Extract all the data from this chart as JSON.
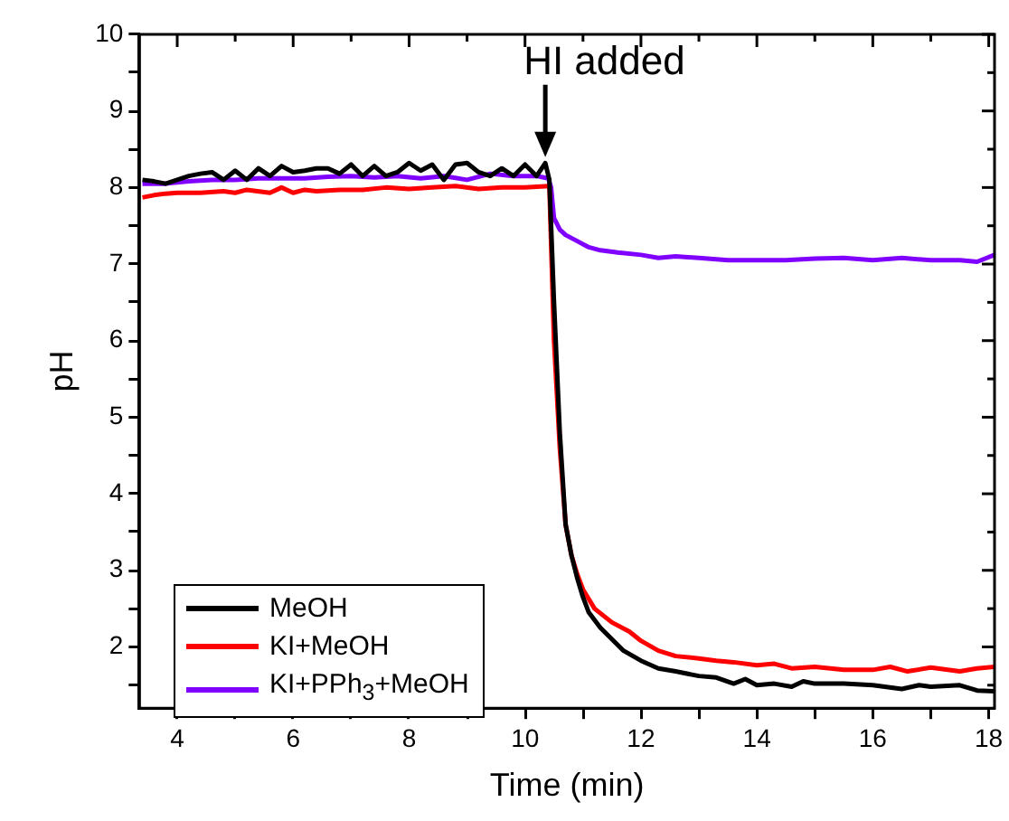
{
  "chart_data": {
    "type": "line",
    "xlabel": "Time (min)",
    "ylabel": "pH",
    "xlim": [
      3.35,
      18.1
    ],
    "ylim": [
      1.2,
      10
    ],
    "xticks": [
      4,
      {
        "value": 5,
        "label": null
      },
      6,
      {
        "value": 7,
        "label": null
      },
      8,
      {
        "value": 9,
        "label": null
      },
      10,
      {
        "value": 11,
        "label": null
      },
      12,
      {
        "value": 13,
        "label": null
      },
      14,
      {
        "value": 15,
        "label": null
      },
      16,
      {
        "value": 17,
        "label": null
      },
      18
    ],
    "yticks": [
      {
        "value": 1.5,
        "label": null
      },
      2,
      {
        "value": 2.5,
        "label": null
      },
      3,
      {
        "value": 3.5,
        "label": null
      },
      4,
      {
        "value": 4.5,
        "label": null
      },
      5,
      {
        "value": 5.5,
        "label": null
      },
      6,
      {
        "value": 6.5,
        "label": null
      },
      7,
      {
        "value": 7.5,
        "label": null
      },
      8,
      {
        "value": 8.5,
        "label": null
      },
      9,
      {
        "value": 9.5,
        "label": null
      },
      10
    ],
    "grid": false,
    "legend": "bottom left",
    "marker": "none",
    "line_style": "solid",
    "annotations": [
      {
        "text": "HI added",
        "x": 10.35,
        "y": 8.35
      }
    ],
    "series": [
      {
        "name": "MeOH",
        "color": "#000000",
        "x": [
          3.4,
          3.6,
          3.8,
          4.0,
          4.2,
          4.4,
          4.6,
          4.8,
          5.0,
          5.2,
          5.4,
          5.6,
          5.8,
          6.0,
          6.2,
          6.4,
          6.6,
          6.8,
          7.0,
          7.2,
          7.4,
          7.6,
          7.8,
          8.0,
          8.2,
          8.4,
          8.6,
          8.8,
          9.0,
          9.2,
          9.4,
          9.6,
          9.8,
          10.0,
          10.2,
          10.35,
          10.42,
          10.5,
          10.6,
          10.7,
          10.8,
          10.9,
          11.0,
          11.1,
          11.3,
          11.5,
          11.7,
          12.0,
          12.3,
          12.6,
          13.0,
          13.3,
          13.6,
          13.8,
          14.0,
          14.3,
          14.6,
          14.8,
          15.0,
          15.5,
          16.0,
          16.5,
          16.8,
          17.0,
          17.5,
          17.8,
          18.1
        ],
        "values": [
          8.1,
          8.08,
          8.05,
          8.1,
          8.15,
          8.18,
          8.2,
          8.1,
          8.22,
          8.1,
          8.25,
          8.15,
          8.28,
          8.2,
          8.22,
          8.25,
          8.25,
          8.18,
          8.3,
          8.15,
          8.28,
          8.15,
          8.2,
          8.32,
          8.22,
          8.3,
          8.1,
          8.3,
          8.32,
          8.2,
          8.15,
          8.25,
          8.15,
          8.3,
          8.15,
          8.32,
          8.1,
          6.5,
          4.8,
          3.6,
          3.2,
          2.9,
          2.65,
          2.45,
          2.25,
          2.1,
          1.95,
          1.82,
          1.72,
          1.68,
          1.62,
          1.6,
          1.52,
          1.58,
          1.5,
          1.52,
          1.48,
          1.55,
          1.52,
          1.52,
          1.5,
          1.45,
          1.5,
          1.48,
          1.5,
          1.43,
          1.42
        ]
      },
      {
        "name": "KI+MeOH",
        "color": "#ff0000",
        "x": [
          3.4,
          3.6,
          3.8,
          4.0,
          4.4,
          4.8,
          5.0,
          5.2,
          5.6,
          5.8,
          6.0,
          6.2,
          6.4,
          6.8,
          7.2,
          7.6,
          8.0,
          8.4,
          8.8,
          9.2,
          9.6,
          10.0,
          10.42,
          10.5,
          10.6,
          10.7,
          10.8,
          10.9,
          11.0,
          11.2,
          11.5,
          11.8,
          12.0,
          12.3,
          12.6,
          13.0,
          13.3,
          13.6,
          14.0,
          14.3,
          14.6,
          15.0,
          15.5,
          16.0,
          16.3,
          16.6,
          17.0,
          17.5,
          17.8,
          18.1
        ],
        "values": [
          7.87,
          7.9,
          7.92,
          7.93,
          7.93,
          7.95,
          7.93,
          7.97,
          7.93,
          8.0,
          7.93,
          7.97,
          7.95,
          7.97,
          7.97,
          8.0,
          7.98,
          8.0,
          8.02,
          7.98,
          8.0,
          8.0,
          8.02,
          6.0,
          4.6,
          3.6,
          3.2,
          2.95,
          2.75,
          2.5,
          2.32,
          2.2,
          2.08,
          1.95,
          1.88,
          1.85,
          1.82,
          1.8,
          1.76,
          1.78,
          1.72,
          1.74,
          1.7,
          1.7,
          1.74,
          1.68,
          1.73,
          1.68,
          1.72,
          1.74
        ]
      },
      {
        "name": "KI+PPh$_{3}$+MeOH",
        "color": "#8000ff",
        "x": [
          3.4,
          3.8,
          4.2,
          4.6,
          5.0,
          5.4,
          5.8,
          6.2,
          6.6,
          7.0,
          7.4,
          7.8,
          8.2,
          8.6,
          9.0,
          9.4,
          9.8,
          10.2,
          10.4,
          10.45,
          10.5,
          10.6,
          10.7,
          10.9,
          11.1,
          11.3,
          11.6,
          12.0,
          12.3,
          12.6,
          13.0,
          13.5,
          14.0,
          14.5,
          15.0,
          15.5,
          16.0,
          16.5,
          17.0,
          17.5,
          17.8,
          18.1
        ],
        "values": [
          8.05,
          8.05,
          8.08,
          8.1,
          8.1,
          8.12,
          8.12,
          8.12,
          8.14,
          8.15,
          8.13,
          8.15,
          8.12,
          8.15,
          8.1,
          8.18,
          8.15,
          8.15,
          8.12,
          8.0,
          7.6,
          7.45,
          7.38,
          7.3,
          7.22,
          7.18,
          7.15,
          7.12,
          7.08,
          7.1,
          7.08,
          7.05,
          7.05,
          7.05,
          7.07,
          7.08,
          7.05,
          7.08,
          7.05,
          7.05,
          7.03,
          7.12
        ]
      }
    ]
  }
}
